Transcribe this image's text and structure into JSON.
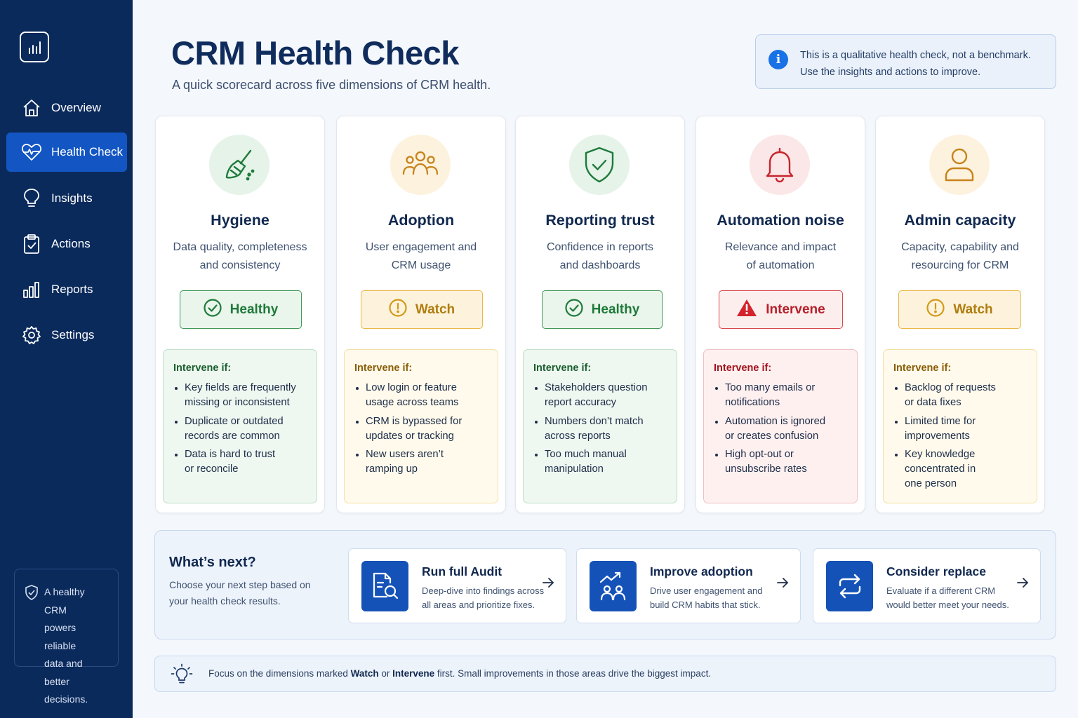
{
  "sidebar": {
    "logo_icon": "bar-chart-icon",
    "items": [
      {
        "label": "Overview",
        "icon": "home-icon",
        "active": false
      },
      {
        "label": "Health Check",
        "icon": "heart-pulse-icon",
        "active": true
      },
      {
        "label": "Insights",
        "icon": "lightbulb-icon",
        "active": false
      },
      {
        "label": "Actions",
        "icon": "clipboard-check-icon",
        "active": false
      },
      {
        "label": "Reports",
        "icon": "bar-chart-icon",
        "active": false
      },
      {
        "label": "Settings",
        "icon": "gear-icon",
        "active": false
      }
    ],
    "note": {
      "icon": "shield-check-icon",
      "line1": "A healthy CRM",
      "line2": "powers reliable",
      "line3": "data and better",
      "line4": "decisions."
    }
  },
  "header": {
    "title": "CRM Health Check",
    "subtitle": "A quick scorecard across five dimensions of CRM health.",
    "info": {
      "icon": "info-icon",
      "line1": "This is a qualitative health check, not a benchmark.",
      "line2": "Use the insights and actions to improve."
    }
  },
  "cards": [
    {
      "title": "Hygiene",
      "desc1": "Data quality, completeness",
      "desc2": "and consistency",
      "icon": "broom-icon",
      "status": "Healthy",
      "status_icon": "check-circle-icon",
      "intervene_label": "Intervene if:",
      "bullets": [
        [
          "Key fields are frequently",
          "missing or inconsistent"
        ],
        [
          "Duplicate or outdated",
          "records are common"
        ],
        [
          "Data is hard to trust",
          "or reconcile"
        ]
      ]
    },
    {
      "title": "Adoption",
      "desc1": "User engagement and",
      "desc2": "CRM usage",
      "icon": "users-icon",
      "status": "Watch",
      "status_icon": "exclamation-circle-icon",
      "intervene_label": "Intervene if:",
      "bullets": [
        [
          "Low login or feature",
          "usage across teams"
        ],
        [
          "CRM is bypassed for",
          "updates or tracking"
        ],
        [
          "New users aren’t",
          "ramping up"
        ]
      ]
    },
    {
      "title": "Reporting trust",
      "desc1": "Confidence in reports",
      "desc2": "and dashboards",
      "icon": "shield-check-icon",
      "status": "Healthy",
      "status_icon": "check-circle-icon",
      "intervene_label": "Intervene if:",
      "bullets": [
        [
          "Stakeholders question",
          "report accuracy"
        ],
        [
          "Numbers don’t match",
          "across reports"
        ],
        [
          "Too much manual",
          "manipulation"
        ]
      ]
    },
    {
      "title": "Automation noise",
      "desc1": "Relevance and impact",
      "desc2": "of automation",
      "icon": "bell-icon",
      "status": "Intervene",
      "status_icon": "warning-triangle-icon",
      "intervene_label": "Intervene if:",
      "bullets": [
        [
          "Too many emails or",
          "notifications"
        ],
        [
          "Automation is ignored",
          "or creates confusion"
        ],
        [
          "High opt-out or",
          "unsubscribe rates"
        ]
      ]
    },
    {
      "title": "Admin capacity",
      "desc1": "Capacity, capability and",
      "desc2": "resourcing for CRM",
      "icon": "user-icon",
      "status": "Watch",
      "status_icon": "exclamation-circle-icon",
      "intervene_label": "Intervene if:",
      "bullets": [
        [
          "Backlog of requests",
          "or data fixes"
        ],
        [
          "Limited time for",
          "improvements"
        ],
        [
          "Key knowledge",
          "concentrated in",
          "one person"
        ]
      ]
    }
  ],
  "next": {
    "title": "What’s next?",
    "sub1": "Choose your next step based on",
    "sub2": "your health check results.",
    "actions": [
      {
        "title": "Run full Audit",
        "desc1": "Deep-dive into findings across",
        "desc2": "all areas and prioritize fixes.",
        "icon": "document-search-icon"
      },
      {
        "title": "Improve adoption",
        "desc1": "Drive user engagement and",
        "desc2": "build CRM habits that stick.",
        "icon": "users-trend-icon"
      },
      {
        "title": "Consider replace",
        "desc1": "Evaluate if a different CRM",
        "desc2": "would better meet your needs.",
        "icon": "swap-arrows-icon"
      }
    ]
  },
  "tip": {
    "icon": "lightbulb-icon",
    "pre": "Focus on the dimensions marked ",
    "w1": "Watch",
    "mid": " or ",
    "w2": "Intervene",
    "post": " first. Small improvements in those areas drive the biggest impact."
  },
  "colors": {
    "sidebar": "#0b2a5c",
    "active_nav": "#1356c3",
    "healthy": "#1f7a3a",
    "watch": "#b07c0d",
    "intervene": "#b6202a",
    "action_icon_bg": "#1452b8"
  }
}
